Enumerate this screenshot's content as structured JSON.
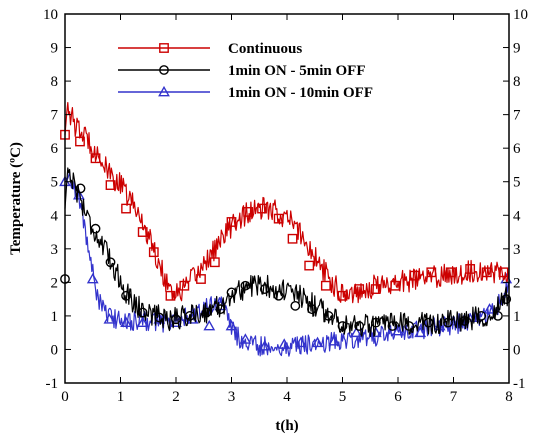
{
  "chart_data": {
    "type": "line",
    "title": "",
    "xlabel": "t(h)",
    "ylabel": "Temperature (ºC)",
    "xlim": [
      0,
      8
    ],
    "ylim": [
      -1,
      10
    ],
    "xticks": [
      0,
      1,
      2,
      3,
      4,
      5,
      6,
      7,
      8
    ],
    "yticks": [
      -1,
      0,
      1,
      2,
      3,
      4,
      5,
      6,
      7,
      8,
      9,
      10
    ],
    "grid": false,
    "legend_position": "top-left",
    "series": [
      {
        "name": "Continuous",
        "color": "#cc0000",
        "marker": "square",
        "noise": 0.35,
        "points": [
          [
            0.0,
            6.4
          ],
          [
            0.05,
            7.4
          ],
          [
            0.1,
            7.0
          ],
          [
            0.2,
            6.6
          ],
          [
            0.4,
            6.3
          ],
          [
            0.6,
            5.8
          ],
          [
            0.8,
            5.2
          ],
          [
            1.0,
            4.9
          ],
          [
            1.2,
            4.4
          ],
          [
            1.4,
            3.8
          ],
          [
            1.6,
            3.0
          ],
          [
            1.8,
            2.1
          ],
          [
            2.0,
            1.6
          ],
          [
            2.2,
            1.9
          ],
          [
            2.4,
            2.3
          ],
          [
            2.6,
            2.8
          ],
          [
            2.8,
            3.2
          ],
          [
            3.0,
            3.7
          ],
          [
            3.2,
            4.0
          ],
          [
            3.4,
            4.1
          ],
          [
            3.6,
            4.2
          ],
          [
            3.8,
            4.1
          ],
          [
            4.0,
            3.9
          ],
          [
            4.2,
            3.6
          ],
          [
            4.4,
            3.0
          ],
          [
            4.6,
            2.5
          ],
          [
            4.8,
            2.0
          ],
          [
            5.0,
            1.7
          ],
          [
            5.2,
            1.7
          ],
          [
            5.4,
            1.8
          ],
          [
            5.6,
            1.9
          ],
          [
            6.0,
            2.0
          ],
          [
            6.4,
            2.1
          ],
          [
            6.8,
            2.2
          ],
          [
            7.2,
            2.3
          ],
          [
            7.6,
            2.35
          ],
          [
            8.0,
            2.3
          ]
        ],
        "markers": [
          [
            0.0,
            6.4
          ],
          [
            0.27,
            6.2
          ],
          [
            0.55,
            5.7
          ],
          [
            0.82,
            4.9
          ],
          [
            1.1,
            4.2
          ],
          [
            1.4,
            3.5
          ],
          [
            1.6,
            2.9
          ],
          [
            1.9,
            1.6
          ],
          [
            2.15,
            1.9
          ],
          [
            2.45,
            2.1
          ],
          [
            2.7,
            2.6
          ],
          [
            3.0,
            3.8
          ],
          [
            3.3,
            4.1
          ],
          [
            3.55,
            4.2
          ],
          [
            3.85,
            3.9
          ],
          [
            4.1,
            3.3
          ],
          [
            4.4,
            2.5
          ],
          [
            4.7,
            1.9
          ],
          [
            5.0,
            1.6
          ],
          [
            5.3,
            1.8
          ],
          [
            5.6,
            1.8
          ],
          [
            5.95,
            1.9
          ],
          [
            6.3,
            2.2
          ],
          [
            6.6,
            2.3
          ],
          [
            6.95,
            2.3
          ],
          [
            7.3,
            2.4
          ],
          [
            7.6,
            2.3
          ],
          [
            7.9,
            2.3
          ]
        ]
      },
      {
        "name": "1min ON - 5min OFF",
        "color": "#000000",
        "marker": "circle",
        "noise": 0.35,
        "points": [
          [
            0.0,
            4.2
          ],
          [
            0.05,
            5.4
          ],
          [
            0.15,
            5.0
          ],
          [
            0.3,
            4.4
          ],
          [
            0.5,
            3.6
          ],
          [
            0.7,
            3.0
          ],
          [
            0.9,
            2.4
          ],
          [
            1.1,
            1.7
          ],
          [
            1.3,
            1.3
          ],
          [
            1.5,
            1.1
          ],
          [
            1.7,
            1.0
          ],
          [
            1.9,
            0.9
          ],
          [
            2.2,
            1.0
          ],
          [
            2.5,
            1.1
          ],
          [
            2.8,
            1.3
          ],
          [
            3.0,
            1.6
          ],
          [
            3.3,
            1.9
          ],
          [
            3.6,
            1.9
          ],
          [
            3.9,
            1.8
          ],
          [
            4.2,
            1.6
          ],
          [
            4.5,
            1.3
          ],
          [
            4.8,
            1.0
          ],
          [
            5.0,
            0.8
          ],
          [
            5.3,
            0.7
          ],
          [
            5.6,
            0.7
          ],
          [
            6.0,
            0.75
          ],
          [
            6.4,
            0.75
          ],
          [
            6.8,
            0.8
          ],
          [
            7.2,
            0.9
          ],
          [
            7.6,
            1.0
          ],
          [
            8.0,
            1.6
          ]
        ],
        "markers": [
          [
            0.0,
            2.1
          ],
          [
            0.28,
            4.8
          ],
          [
            0.55,
            3.6
          ],
          [
            0.82,
            2.6
          ],
          [
            1.1,
            1.6
          ],
          [
            1.4,
            1.1
          ],
          [
            1.7,
            0.95
          ],
          [
            2.0,
            0.9
          ],
          [
            2.25,
            1.0
          ],
          [
            2.55,
            1.1
          ],
          [
            2.8,
            1.2
          ],
          [
            3.0,
            1.7
          ],
          [
            3.25,
            1.9
          ],
          [
            3.6,
            1.8
          ],
          [
            3.85,
            1.6
          ],
          [
            4.15,
            1.3
          ],
          [
            4.45,
            1.2
          ],
          [
            4.75,
            1.0
          ],
          [
            5.0,
            0.7
          ],
          [
            5.3,
            0.7
          ],
          [
            5.6,
            0.8
          ],
          [
            5.9,
            0.7
          ],
          [
            6.2,
            0.7
          ],
          [
            6.55,
            0.8
          ],
          [
            6.9,
            0.8
          ],
          [
            7.2,
            0.85
          ],
          [
            7.5,
            1.0
          ],
          [
            7.8,
            1.0
          ],
          [
            7.95,
            1.5
          ]
        ]
      },
      {
        "name": "1min ON - 10min OFF",
        "color": "#3333cc",
        "marker": "triangle",
        "noise": 0.3,
        "points": [
          [
            0.0,
            5.0
          ],
          [
            0.1,
            5.1
          ],
          [
            0.25,
            4.6
          ],
          [
            0.4,
            3.2
          ],
          [
            0.55,
            1.8
          ],
          [
            0.7,
            1.1
          ],
          [
            0.9,
            0.9
          ],
          [
            1.2,
            0.85
          ],
          [
            1.5,
            0.85
          ],
          [
            1.8,
            0.8
          ],
          [
            2.0,
            0.9
          ],
          [
            2.3,
            1.0
          ],
          [
            2.6,
            1.3
          ],
          [
            2.8,
            1.5
          ],
          [
            3.0,
            0.6
          ],
          [
            3.2,
            0.2
          ],
          [
            3.5,
            0.1
          ],
          [
            3.8,
            0.05
          ],
          [
            4.1,
            0.1
          ],
          [
            4.4,
            0.15
          ],
          [
            4.7,
            0.2
          ],
          [
            5.0,
            0.3
          ],
          [
            5.3,
            0.35
          ],
          [
            5.6,
            0.4
          ],
          [
            6.0,
            0.5
          ],
          [
            6.4,
            0.6
          ],
          [
            6.8,
            0.7
          ],
          [
            7.2,
            0.8
          ],
          [
            7.6,
            1.0
          ],
          [
            7.8,
            1.3
          ],
          [
            8.0,
            2.0
          ]
        ],
        "markers": [
          [
            0.0,
            5.0
          ],
          [
            0.25,
            4.6
          ],
          [
            0.5,
            2.1
          ],
          [
            0.8,
            0.9
          ],
          [
            1.1,
            0.8
          ],
          [
            1.4,
            0.8
          ],
          [
            1.7,
            0.9
          ],
          [
            2.0,
            0.8
          ],
          [
            2.3,
            0.9
          ],
          [
            2.6,
            0.7
          ],
          [
            2.8,
            1.3
          ],
          [
            3.0,
            0.7
          ],
          [
            3.25,
            0.3
          ],
          [
            3.6,
            0.1
          ],
          [
            3.95,
            0.15
          ],
          [
            4.25,
            0.2
          ],
          [
            4.55,
            0.2
          ],
          [
            4.85,
            0.25
          ],
          [
            5.25,
            0.5
          ],
          [
            5.6,
            0.5
          ],
          [
            6.0,
            0.55
          ],
          [
            6.4,
            0.5
          ],
          [
            6.75,
            0.7
          ],
          [
            7.1,
            0.85
          ],
          [
            7.4,
            0.95
          ],
          [
            7.65,
            1.2
          ],
          [
            7.95,
            2.1
          ]
        ]
      }
    ]
  }
}
